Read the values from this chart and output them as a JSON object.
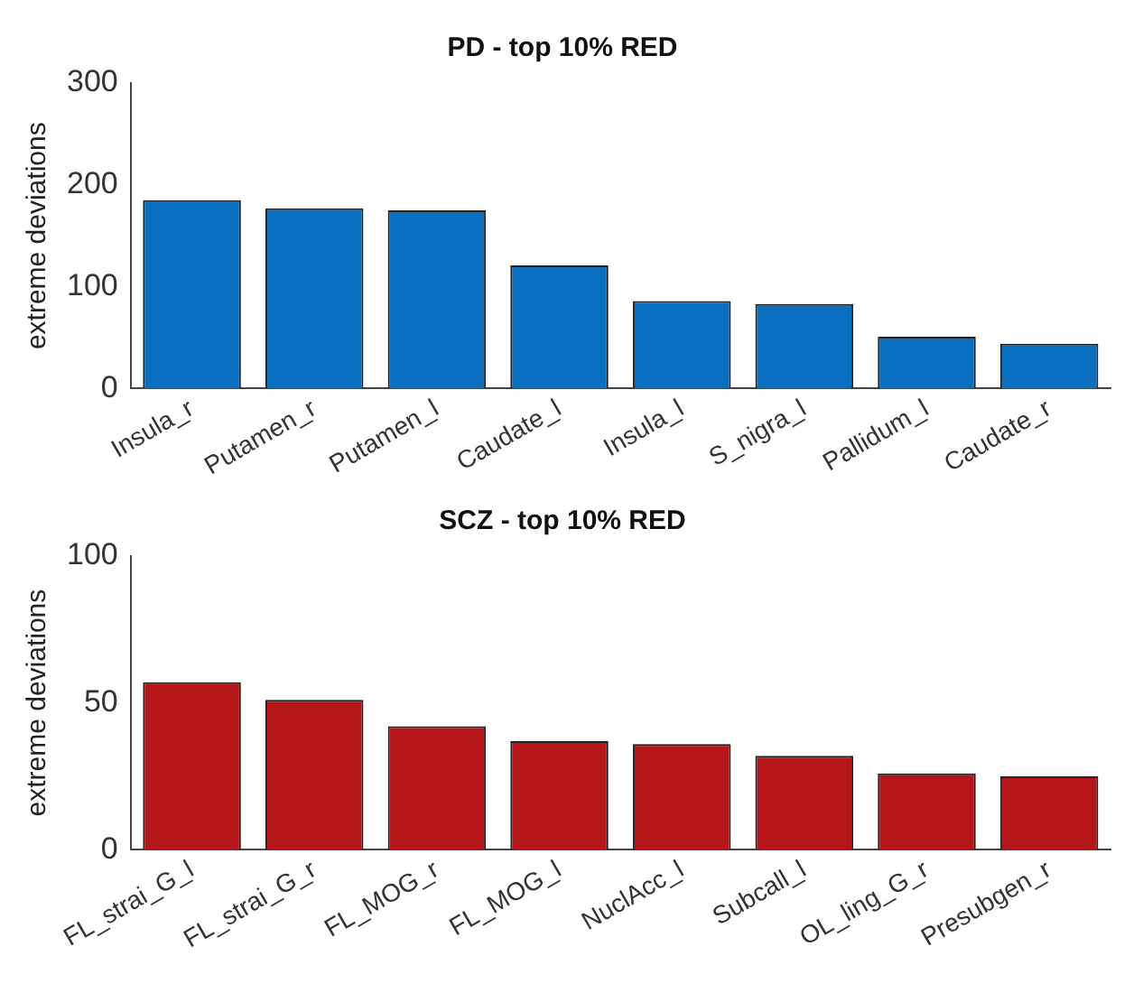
{
  "chart_data": [
    {
      "type": "bar",
      "title": "PD - top 10% RED",
      "ylabel": "extreme deviations",
      "categories": [
        "Insula_r",
        "Putamen_r",
        "Putamen_l",
        "Caudate_l",
        "Insula_l",
        "S_nigra_l",
        "Pallidum_l",
        "Caudate_r"
      ],
      "values": [
        185,
        177,
        175,
        121,
        86,
        83,
        51,
        44
      ],
      "color": "#0a6fbf",
      "ylim": [
        0,
        300
      ],
      "yticks": [
        0,
        100,
        200,
        300
      ],
      "grid": false
    },
    {
      "type": "bar",
      "title": "SCZ - top 10% RED",
      "ylabel": "extreme deviations",
      "categories": [
        "FL_strai_G_l",
        "FL_strai_G_r",
        "FL_MOG_r",
        "FL_MOG_l",
        "NuclAcc_l",
        "Subcall_l",
        "OL_ling_G_r",
        "Presubgen_r"
      ],
      "values": [
        57,
        51,
        42,
        37,
        36,
        32,
        26,
        25
      ],
      "color": "#b5161a",
      "ylim": [
        0,
        100
      ],
      "yticks": [
        0,
        50,
        100
      ],
      "grid": false
    }
  ]
}
